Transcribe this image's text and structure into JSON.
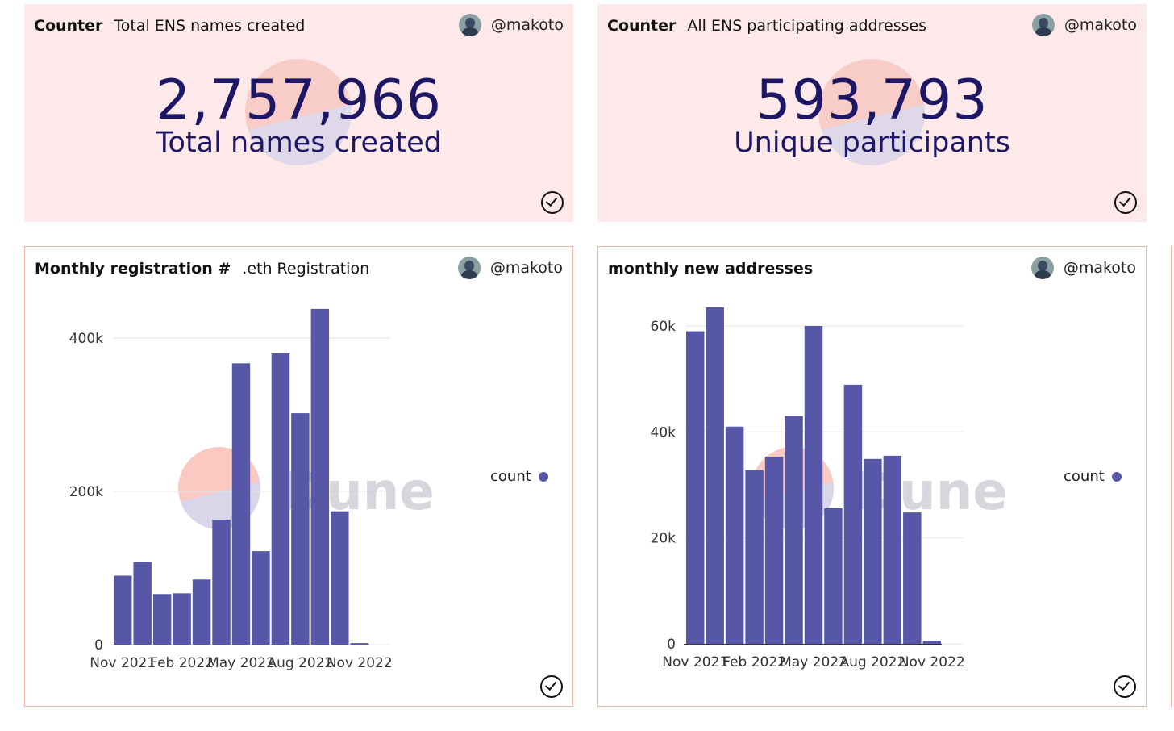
{
  "user": "@makoto",
  "watermark": "Dune",
  "bar_color": "#5757a8",
  "counter1": {
    "kind": "Counter",
    "title": "Total ENS names created",
    "value": "2,757,966",
    "label": "Total names created"
  },
  "counter2": {
    "kind": "Counter",
    "title": "All ENS participating addresses",
    "value": "593,793",
    "label": "Unique participants"
  },
  "chart1": {
    "kind": "Monthly registration #",
    "title": ".eth Registration"
  },
  "chart2": {
    "title": "monthly new addresses"
  },
  "chart_data": [
    {
      "type": "bar",
      "title": "Monthly registration #  .eth Registration",
      "categories": [
        "Nov 2021",
        "Dec 2021",
        "Jan 2022",
        "Feb 2022",
        "Mar 2022",
        "Apr 2022",
        "May 2022",
        "Jun 2022",
        "Jul 2022",
        "Aug 2022",
        "Sep 2022",
        "Oct 2022",
        "Nov 2022"
      ],
      "x_tick_labels": [
        "Nov 2021",
        "Feb 2022",
        "May 2022",
        "Aug 2022",
        "Nov 2022"
      ],
      "series": [
        {
          "name": "count",
          "values": [
            90000,
            108000,
            66000,
            67000,
            85000,
            163000,
            367000,
            122000,
            380000,
            302000,
            438000,
            174000,
            2000
          ]
        }
      ],
      "y_ticks": [
        0,
        200000,
        400000
      ],
      "y_tick_labels": [
        "0",
        "200k",
        "400k"
      ],
      "ylim": [
        0,
        440000
      ],
      "grid": true,
      "legend": "right"
    },
    {
      "type": "bar",
      "title": "monthly new addresses",
      "categories": [
        "Nov 2021",
        "Dec 2021",
        "Jan 2022",
        "Feb 2022",
        "Mar 2022",
        "Apr 2022",
        "May 2022",
        "Jun 2022",
        "Jul 2022",
        "Aug 2022",
        "Sep 2022",
        "Oct 2022",
        "Nov 2022"
      ],
      "x_tick_labels": [
        "Nov 2021",
        "Feb 2022",
        "May 2022",
        "Aug 2022",
        "Nov 2022"
      ],
      "series": [
        {
          "name": "count",
          "values": [
            59000,
            63500,
            41000,
            32800,
            35300,
            43000,
            60000,
            25600,
            48900,
            34900,
            35500,
            24800,
            600
          ]
        }
      ],
      "y_ticks": [
        0,
        20000,
        40000,
        60000
      ],
      "y_tick_labels": [
        "0",
        "20k",
        "40k",
        "60k"
      ],
      "ylim": [
        0,
        63500
      ],
      "grid": true,
      "legend": "right"
    }
  ]
}
